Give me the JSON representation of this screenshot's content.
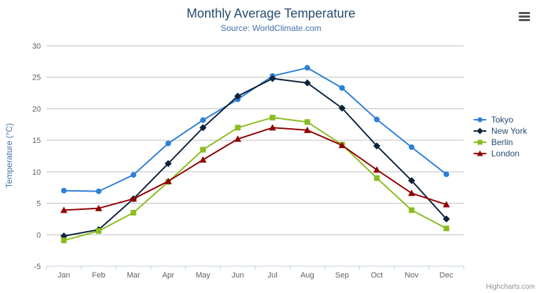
{
  "chart_data": {
    "type": "line",
    "title": "Monthly Average Temperature",
    "subtitle": "Source: WorldClimate.com",
    "categories": [
      "Jan",
      "Feb",
      "Mar",
      "Apr",
      "May",
      "Jun",
      "Jul",
      "Aug",
      "Sep",
      "Oct",
      "Nov",
      "Dec"
    ],
    "xlabel": "",
    "ylabel": "Temperature (°C)",
    "ylim": [
      -5,
      30
    ],
    "ytick_step": 5,
    "grid": true,
    "legend_position": "right",
    "series": [
      {
        "name": "Tokyo",
        "color": "#2f7ed8",
        "marker": "circle",
        "values": [
          7.0,
          6.9,
          9.5,
          14.5,
          18.2,
          21.5,
          25.2,
          26.5,
          23.3,
          18.3,
          13.9,
          9.6
        ]
      },
      {
        "name": "New York",
        "color": "#0d233a",
        "marker": "diamond",
        "values": [
          -0.2,
          0.8,
          5.7,
          11.3,
          17.0,
          22.0,
          24.8,
          24.1,
          20.1,
          14.1,
          8.6,
          2.5
        ]
      },
      {
        "name": "Berlin",
        "color": "#8bbc21",
        "marker": "square",
        "values": [
          -0.9,
          0.6,
          3.5,
          8.4,
          13.5,
          17.0,
          18.6,
          17.9,
          14.3,
          9.0,
          3.9,
          1.0
        ]
      },
      {
        "name": "London",
        "color": "#910000",
        "marker": "triangle",
        "values": [
          3.9,
          4.2,
          5.7,
          8.5,
          11.9,
          15.2,
          17.0,
          16.6,
          14.2,
          10.3,
          6.6,
          4.8
        ]
      }
    ]
  },
  "theme": {
    "title_color": "#274b6d",
    "subtitle_color": "#4572a7",
    "axis_label_color": "#606060",
    "axis_title_color": "#4572a7",
    "grid_color": "#c0c0c0",
    "axis_line_color": "#c0d0e0",
    "legend_text_color": "#274b6d",
    "credits_color": "#909090"
  },
  "credits": {
    "text": "Highcharts.com"
  }
}
